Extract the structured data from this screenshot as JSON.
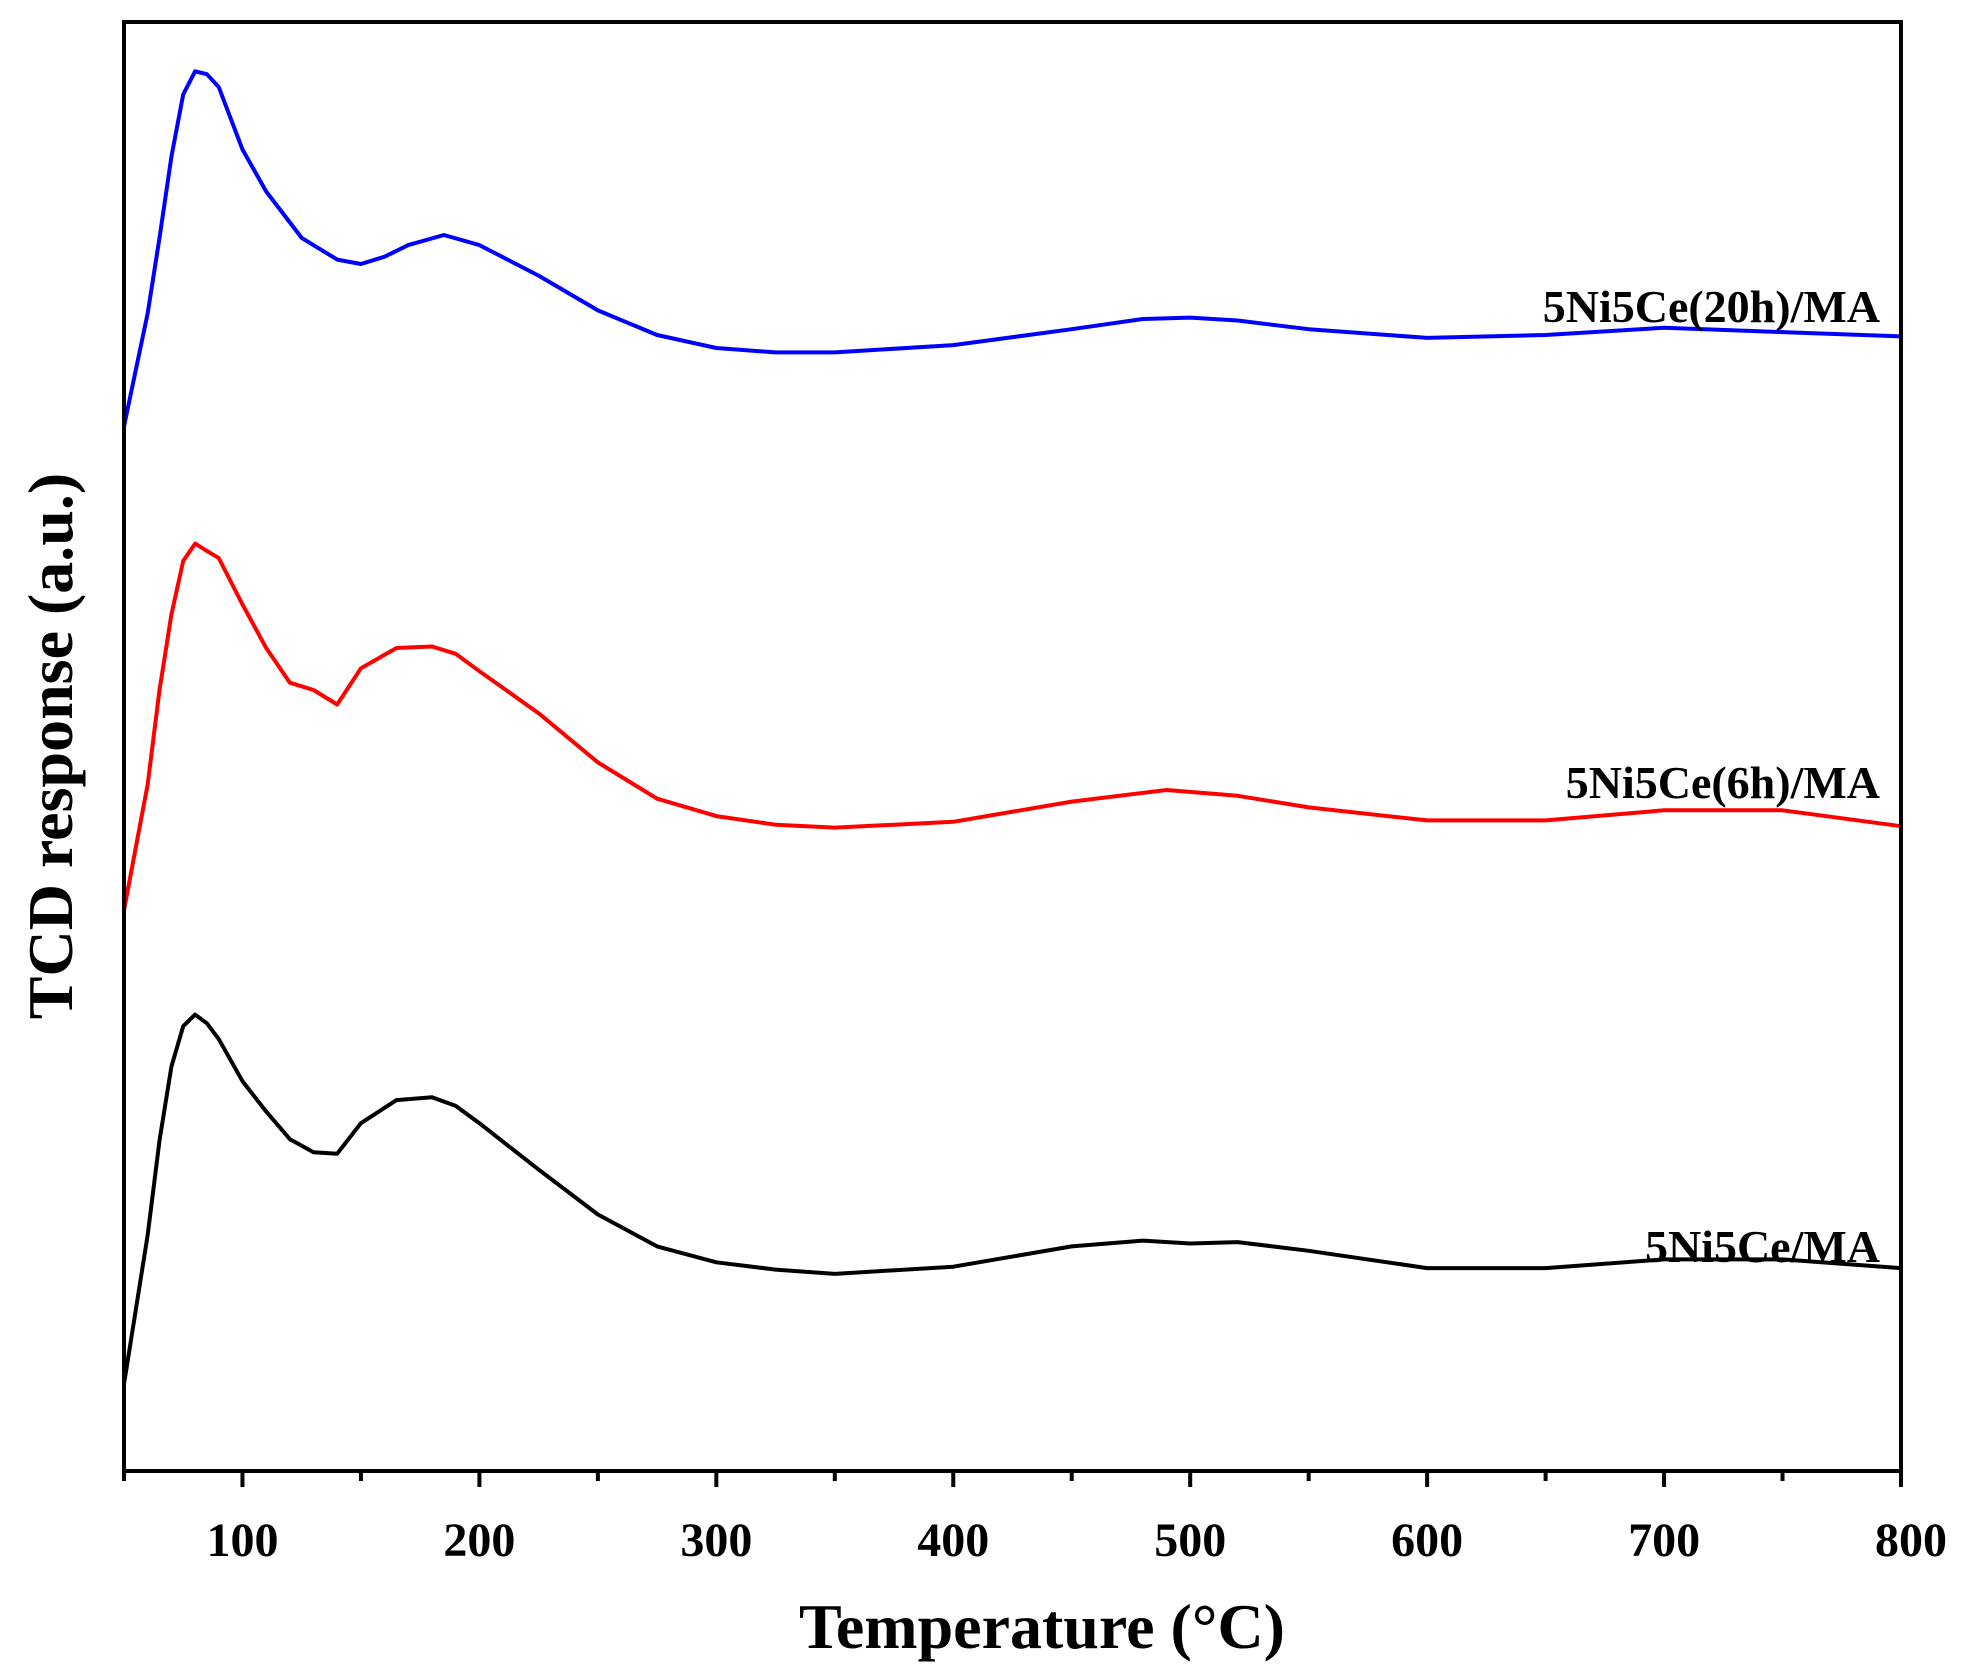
{
  "chart_data": {
    "type": "line",
    "title": "",
    "xlabel": "Temperature (°C)",
    "ylabel": "TCD response (a.u.)",
    "xlim": [
      50,
      800
    ],
    "ylim": [
      0,
      100
    ],
    "x_ticks": [
      "100",
      "200",
      "300",
      "400",
      "500",
      "600",
      "700",
      "800"
    ],
    "x_tick_values": [
      100,
      200,
      300,
      400,
      500,
      600,
      700,
      800
    ],
    "minor_tick_step": 50,
    "y_ticks_shown": false,
    "series": [
      {
        "name": "5Ni5Ce(20h)/MA",
        "color": "#0000ff",
        "x": [
          50,
          60,
          65,
          70,
          75,
          80,
          85,
          90,
          100,
          110,
          125,
          140,
          150,
          160,
          170,
          185,
          200,
          225,
          250,
          275,
          300,
          325,
          350,
          400,
          450,
          480,
          500,
          520,
          550,
          600,
          650,
          700,
          750,
          800
        ],
        "y": [
          72.1,
          79.9,
          85.1,
          90.7,
          95.0,
          96.6,
          96.4,
          95.5,
          91.2,
          88.3,
          85.1,
          83.6,
          83.3,
          83.8,
          84.6,
          85.3,
          84.6,
          82.5,
          80.1,
          78.4,
          77.5,
          77.2,
          77.2,
          77.7,
          78.8,
          79.5,
          79.6,
          79.4,
          78.8,
          78.2,
          78.4,
          78.9,
          78.6,
          78.3
        ]
      },
      {
        "name": "5Ni5Ce(6h)/MA",
        "color": "#ff0000",
        "x": [
          50,
          60,
          65,
          70,
          75,
          80,
          85,
          90,
          100,
          110,
          120,
          130,
          140,
          150,
          165,
          180,
          190,
          200,
          225,
          250,
          275,
          300,
          325,
          350,
          400,
          450,
          490,
          520,
          550,
          600,
          650,
          700,
          750,
          800
        ],
        "y": [
          38.7,
          47.4,
          53.9,
          59.1,
          62.8,
          64.0,
          63.5,
          63.0,
          59.8,
          56.8,
          54.4,
          53.9,
          52.9,
          55.4,
          56.8,
          56.9,
          56.4,
          55.2,
          52.3,
          48.9,
          46.4,
          45.2,
          44.6,
          44.4,
          44.8,
          46.2,
          47.0,
          46.6,
          45.8,
          44.9,
          44.9,
          45.6,
          45.6,
          44.5
        ]
      },
      {
        "name": "5Ni5Ce/MA",
        "color": "#000000",
        "x": [
          50,
          60,
          65,
          70,
          75,
          80,
          85,
          90,
          100,
          110,
          120,
          130,
          140,
          150,
          165,
          180,
          190,
          200,
          225,
          250,
          275,
          300,
          325,
          350,
          400,
          450,
          480,
          500,
          520,
          550,
          600,
          650,
          700,
          750,
          800
        ],
        "y": [
          6.0,
          16.3,
          22.8,
          27.9,
          30.7,
          31.5,
          30.9,
          29.8,
          26.9,
          24.8,
          22.9,
          22.0,
          21.9,
          24.0,
          25.6,
          25.8,
          25.2,
          24.0,
          20.8,
          17.7,
          15.5,
          14.4,
          13.9,
          13.6,
          14.1,
          15.5,
          15.9,
          15.7,
          15.8,
          15.2,
          14.0,
          14.0,
          14.6,
          14.6,
          14.0
        ]
      }
    ]
  }
}
